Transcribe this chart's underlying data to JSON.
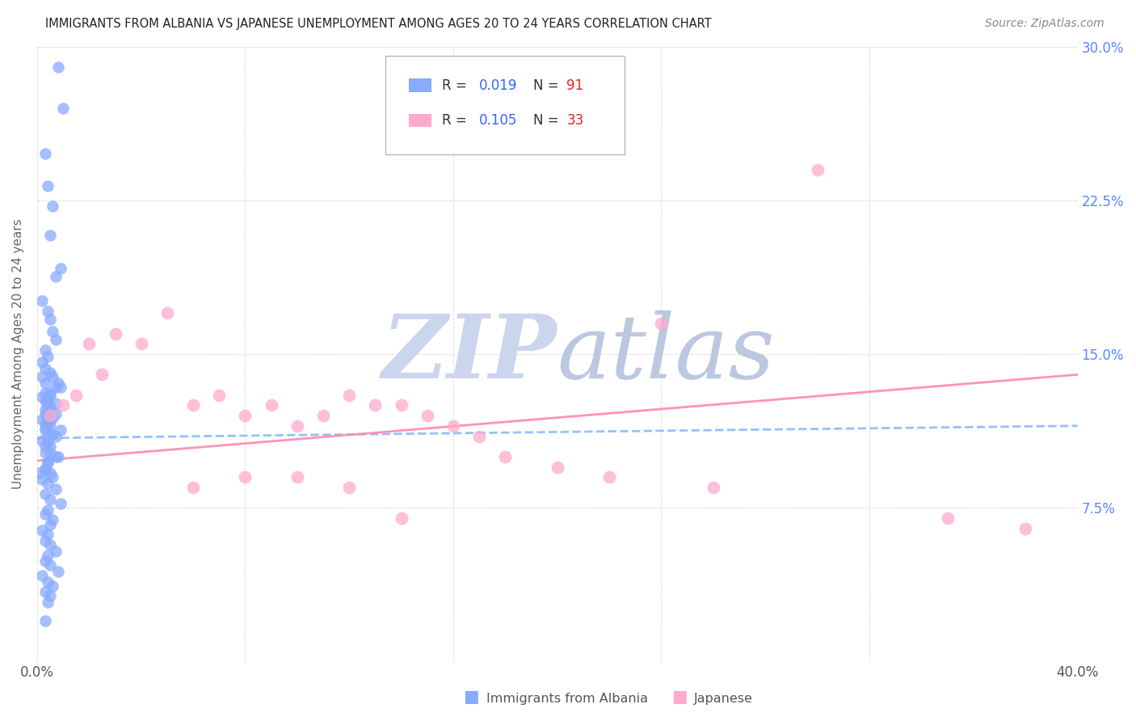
{
  "title": "IMMIGRANTS FROM ALBANIA VS JAPANESE UNEMPLOYMENT AMONG AGES 20 TO 24 YEARS CORRELATION CHART",
  "source": "Source: ZipAtlas.com",
  "ylabel": "Unemployment Among Ages 20 to 24 years",
  "xlim": [
    0.0,
    0.4
  ],
  "ylim": [
    0.0,
    0.3
  ],
  "color_blue": "#88aaff",
  "color_pink": "#ffaacc",
  "color_trendline_blue": "#88bbff",
  "color_trendline_pink": "#ff88aa",
  "watermark_zip_color": "#d0d8f0",
  "watermark_atlas_color": "#c8d8e8",
  "albania_x": [
    0.008,
    0.01,
    0.003,
    0.004,
    0.006,
    0.005,
    0.009,
    0.007,
    0.002,
    0.004,
    0.005,
    0.006,
    0.007,
    0.003,
    0.004,
    0.002,
    0.003,
    0.005,
    0.006,
    0.008,
    0.007,
    0.003,
    0.002,
    0.004,
    0.005,
    0.003,
    0.006,
    0.004,
    0.003,
    0.006,
    0.002,
    0.003,
    0.009,
    0.005,
    0.004,
    0.007,
    0.003,
    0.004,
    0.002,
    0.005,
    0.003,
    0.007,
    0.004,
    0.003,
    0.005,
    0.008,
    0.004,
    0.003,
    0.001,
    0.006,
    0.005,
    0.003,
    0.004,
    0.007,
    0.005,
    0.003,
    0.009,
    0.004,
    0.002,
    0.005,
    0.003,
    0.007,
    0.004,
    0.003,
    0.005,
    0.002,
    0.004,
    0.007,
    0.003,
    0.005,
    0.009,
    0.004,
    0.003,
    0.006,
    0.005,
    0.002,
    0.004,
    0.003,
    0.005,
    0.007,
    0.004,
    0.003,
    0.005,
    0.008,
    0.002,
    0.004,
    0.006,
    0.003,
    0.005,
    0.004,
    0.003
  ],
  "albania_y": [
    0.29,
    0.27,
    0.248,
    0.232,
    0.222,
    0.208,
    0.192,
    0.188,
    0.176,
    0.171,
    0.167,
    0.161,
    0.157,
    0.152,
    0.149,
    0.146,
    0.143,
    0.141,
    0.139,
    0.136,
    0.134,
    0.131,
    0.129,
    0.126,
    0.124,
    0.121,
    0.119,
    0.116,
    0.114,
    0.111,
    0.139,
    0.136,
    0.134,
    0.131,
    0.128,
    0.126,
    0.123,
    0.12,
    0.118,
    0.115,
    0.113,
    0.11,
    0.107,
    0.105,
    0.102,
    0.1,
    0.097,
    0.094,
    0.092,
    0.09,
    0.13,
    0.127,
    0.124,
    0.121,
    0.118,
    0.116,
    0.113,
    0.11,
    0.108,
    0.105,
    0.102,
    0.1,
    0.097,
    0.094,
    0.092,
    0.089,
    0.087,
    0.084,
    0.082,
    0.079,
    0.077,
    0.074,
    0.072,
    0.069,
    0.067,
    0.064,
    0.062,
    0.059,
    0.057,
    0.054,
    0.052,
    0.049,
    0.047,
    0.044,
    0.042,
    0.039,
    0.037,
    0.034,
    0.032,
    0.029,
    0.02
  ],
  "japanese_x": [
    0.005,
    0.01,
    0.015,
    0.02,
    0.025,
    0.03,
    0.04,
    0.05,
    0.06,
    0.07,
    0.08,
    0.09,
    0.1,
    0.11,
    0.12,
    0.13,
    0.14,
    0.15,
    0.16,
    0.17,
    0.18,
    0.2,
    0.22,
    0.24,
    0.26,
    0.3,
    0.35,
    0.38,
    0.06,
    0.08,
    0.1,
    0.12,
    0.14
  ],
  "japanese_y": [
    0.12,
    0.125,
    0.13,
    0.155,
    0.14,
    0.16,
    0.155,
    0.17,
    0.125,
    0.13,
    0.12,
    0.125,
    0.115,
    0.12,
    0.13,
    0.125,
    0.125,
    0.12,
    0.115,
    0.11,
    0.1,
    0.095,
    0.09,
    0.165,
    0.085,
    0.24,
    0.07,
    0.065,
    0.085,
    0.09,
    0.09,
    0.085,
    0.07
  ],
  "trendline_albania_x0": 0.0,
  "trendline_albania_x1": 0.4,
  "trendline_albania_y0": 0.109,
  "trendline_albania_y1": 0.115,
  "trendline_japanese_x0": 0.0,
  "trendline_japanese_x1": 0.4,
  "trendline_japanese_y0": 0.098,
  "trendline_japanese_y1": 0.14
}
